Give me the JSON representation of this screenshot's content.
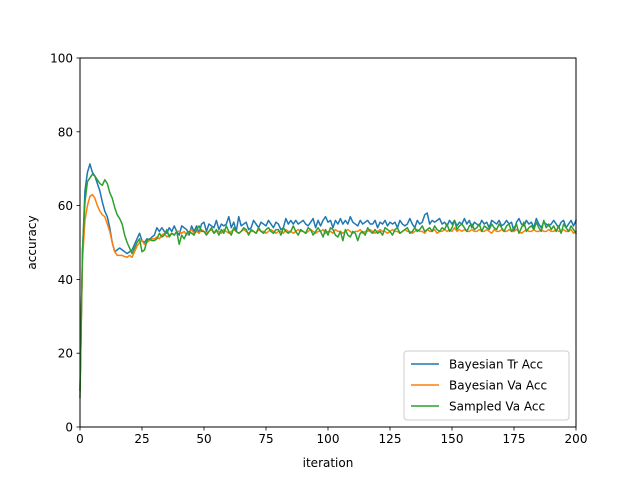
{
  "chart_data": {
    "type": "line",
    "title": "",
    "xlabel": "iteration",
    "ylabel": "accuracy",
    "xlim": [
      0,
      200
    ],
    "ylim": [
      0,
      100
    ],
    "xticks": [
      0,
      25,
      50,
      75,
      100,
      125,
      150,
      175,
      200
    ],
    "yticks": [
      0,
      20,
      40,
      60,
      80,
      100
    ],
    "grid": false,
    "legend_position": "lower-right",
    "series": [
      {
        "name": "Bayesian Tr Acc",
        "color": "#1f77b4",
        "values": [
          10.0,
          47.0,
          64.0,
          69.0,
          71.3,
          69.0,
          68.0,
          66.0,
          64.0,
          61.0,
          58.5,
          57.0,
          54.0,
          50.0,
          47.5,
          48.0,
          48.5,
          48.0,
          47.5,
          47.0,
          47.5,
          48.0,
          49.5,
          51.0,
          52.5,
          50.5,
          50.0,
          51.0,
          50.8,
          51.5,
          52.0,
          54.0,
          53.0,
          54.0,
          53.0,
          52.5,
          54.0,
          53.0,
          54.5,
          53.0,
          52.0,
          54.5,
          54.0,
          53.5,
          52.0,
          54.5,
          53.0,
          54.5,
          52.5,
          55.0,
          55.5,
          53.0,
          55.0,
          54.5,
          54.0,
          56.0,
          53.5,
          55.0,
          54.5,
          55.0,
          57.0,
          54.0,
          55.5,
          53.0,
          57.0,
          54.5,
          55.0,
          55.5,
          53.5,
          54.0,
          56.0,
          55.0,
          54.0,
          55.5,
          55.0,
          54.5,
          56.0,
          55.0,
          54.0,
          55.5,
          55.0,
          53.5,
          54.0,
          56.5,
          55.0,
          56.0,
          55.0,
          56.0,
          55.0,
          55.5,
          56.0,
          55.0,
          54.5,
          55.5,
          56.5,
          54.0,
          56.0,
          54.5,
          56.0,
          57.0,
          55.5,
          56.0,
          54.0,
          56.0,
          55.0,
          56.5,
          55.0,
          56.0,
          55.0,
          57.0,
          55.5,
          55.0,
          54.5,
          56.0,
          55.0,
          55.5,
          56.0,
          55.0,
          55.0,
          56.0,
          54.0,
          55.5,
          55.0,
          56.0,
          54.5,
          55.5,
          55.0,
          55.5,
          54.0,
          56.0,
          55.0,
          54.5,
          55.0,
          56.5,
          55.0,
          54.0,
          56.0,
          55.0,
          55.5,
          57.5,
          58.0,
          55.0,
          56.0,
          55.5,
          56.0,
          56.5,
          55.0,
          55.5,
          54.5,
          56.0,
          55.0,
          56.0,
          54.5,
          55.5,
          55.0,
          56.5,
          55.0,
          56.0,
          54.0,
          55.5,
          55.0,
          54.5,
          56.0,
          55.0,
          55.5,
          54.0,
          56.0,
          55.5,
          55.0,
          56.0,
          54.5,
          55.0,
          56.0,
          55.0,
          55.5,
          53.0,
          55.5,
          56.5,
          55.0,
          54.5,
          56.0,
          55.0,
          55.5,
          54.0,
          56.5,
          55.0,
          54.0,
          55.5,
          55.0,
          54.5,
          55.0,
          56.0,
          55.0,
          54.0,
          55.5,
          56.0,
          54.0,
          55.0,
          56.0,
          54.5,
          56.0
        ]
      },
      {
        "name": "Bayesian Va Acc",
        "color": "#ff7f0e",
        "values": [
          10.0,
          45.0,
          56.0,
          60.0,
          62.5,
          63.0,
          62.0,
          60.0,
          58.5,
          57.5,
          57.0,
          55.0,
          53.0,
          50.0,
          47.5,
          46.5,
          46.5,
          46.5,
          46.2,
          46.0,
          46.5,
          46.0,
          47.5,
          49.0,
          50.0,
          50.5,
          49.5,
          50.0,
          50.5,
          51.0,
          51.0,
          51.5,
          51.0,
          52.0,
          52.5,
          51.5,
          52.0,
          52.5,
          52.0,
          53.0,
          53.0,
          52.5,
          53.0,
          52.0,
          53.0,
          53.5,
          52.5,
          53.0,
          52.5,
          53.5,
          53.0,
          52.5,
          53.0,
          53.5,
          52.5,
          53.0,
          53.0,
          52.5,
          53.5,
          53.0,
          52.5,
          53.0,
          53.5,
          53.0,
          52.5,
          53.0,
          53.5,
          53.0,
          52.5,
          53.0,
          53.0,
          52.5,
          53.5,
          53.0,
          53.0,
          52.5,
          53.0,
          53.5,
          53.0,
          52.5,
          53.0,
          53.0,
          52.5,
          53.5,
          53.0,
          53.0,
          52.5,
          53.0,
          53.5,
          53.0,
          53.0,
          52.5,
          53.0,
          53.5,
          53.0,
          52.5,
          53.0,
          53.0,
          53.5,
          52.5,
          53.0,
          53.0,
          52.5,
          53.5,
          53.0,
          53.0,
          52.5,
          53.0,
          53.5,
          53.0,
          52.5,
          53.0,
          53.0,
          53.5,
          52.5,
          53.0,
          53.0,
          53.5,
          53.0,
          52.5,
          53.0,
          53.5,
          53.0,
          53.0,
          52.5,
          53.0,
          53.5,
          53.0,
          53.0,
          52.5,
          53.0,
          53.5,
          53.0,
          53.0,
          52.5,
          53.0,
          53.5,
          53.0,
          53.0,
          52.5,
          53.5,
          53.0,
          53.0,
          53.5,
          52.5,
          53.0,
          53.0,
          53.5,
          53.0,
          53.5,
          53.0,
          54.0,
          53.0,
          53.5,
          53.0,
          53.5,
          53.0,
          53.0,
          53.5,
          53.0,
          53.0,
          53.5,
          53.0,
          53.0,
          53.5,
          53.0,
          52.5,
          53.5,
          53.0,
          53.0,
          53.5,
          53.0,
          53.0,
          53.5,
          53.0,
          53.0,
          53.5,
          53.0,
          52.5,
          53.0,
          53.5,
          53.0,
          53.0,
          53.5,
          53.0,
          53.0,
          53.5,
          53.0,
          53.0,
          53.5,
          53.0,
          53.0,
          53.5,
          53.0,
          53.0,
          53.5,
          53.0,
          53.0,
          53.5,
          52.5,
          53.0
        ]
      },
      {
        "name": "Sampled Va Acc",
        "color": "#2ca02c",
        "values": [
          8.0,
          48.0,
          61.0,
          66.5,
          67.5,
          68.5,
          68.0,
          67.0,
          66.0,
          65.5,
          67.0,
          66.0,
          63.5,
          62.0,
          59.5,
          57.5,
          56.5,
          55.0,
          52.0,
          50.0,
          48.5,
          47.0,
          48.5,
          50.0,
          51.0,
          47.5,
          48.0,
          50.5,
          51.0,
          50.5,
          50.5,
          51.0,
          52.5,
          51.5,
          52.0,
          53.5,
          51.5,
          52.5,
          52.0,
          53.0,
          49.5,
          52.0,
          51.0,
          52.5,
          53.0,
          52.5,
          52.0,
          53.5,
          54.5,
          53.0,
          53.0,
          52.0,
          53.0,
          54.0,
          52.5,
          53.5,
          52.0,
          53.5,
          52.5,
          54.5,
          53.0,
          52.0,
          54.0,
          53.0,
          52.5,
          53.0,
          54.0,
          53.5,
          52.0,
          53.5,
          53.0,
          52.5,
          54.0,
          53.0,
          52.5,
          53.5,
          54.0,
          53.0,
          52.5,
          53.5,
          53.5,
          52.0,
          54.0,
          53.0,
          52.5,
          53.0,
          54.5,
          53.0,
          52.0,
          53.5,
          53.0,
          52.5,
          54.0,
          53.5,
          52.0,
          53.0,
          54.0,
          53.0,
          51.5,
          53.5,
          52.0,
          54.0,
          53.5,
          52.0,
          51.5,
          53.0,
          50.5,
          53.5,
          52.0,
          51.5,
          53.0,
          52.5,
          50.5,
          52.5,
          53.0,
          52.0,
          54.0,
          53.0,
          52.5,
          53.5,
          52.5,
          53.0,
          52.0,
          54.0,
          53.5,
          53.0,
          52.0,
          53.5,
          54.0,
          52.5,
          53.0,
          53.5,
          54.0,
          52.5,
          53.0,
          54.0,
          53.0,
          53.5,
          54.5,
          53.0,
          53.5,
          54.0,
          53.0,
          54.5,
          53.5,
          53.0,
          54.0,
          53.5,
          55.0,
          53.0,
          54.0,
          56.0,
          53.5,
          54.5,
          55.0,
          54.0,
          53.0,
          54.5,
          55.0,
          53.5,
          54.0,
          55.0,
          53.0,
          54.5,
          54.0,
          53.5,
          55.0,
          54.0,
          53.5,
          55.0,
          54.0,
          53.0,
          54.5,
          55.0,
          53.0,
          54.0,
          55.0,
          52.5,
          54.0,
          55.5,
          53.0,
          54.0,
          54.5,
          53.5,
          55.5,
          54.0,
          53.0,
          56.0,
          54.0,
          55.0,
          53.5,
          54.5,
          53.0,
          54.5,
          52.5,
          55.0,
          54.0,
          53.0,
          54.5,
          53.5,
          52.5
        ]
      }
    ]
  }
}
